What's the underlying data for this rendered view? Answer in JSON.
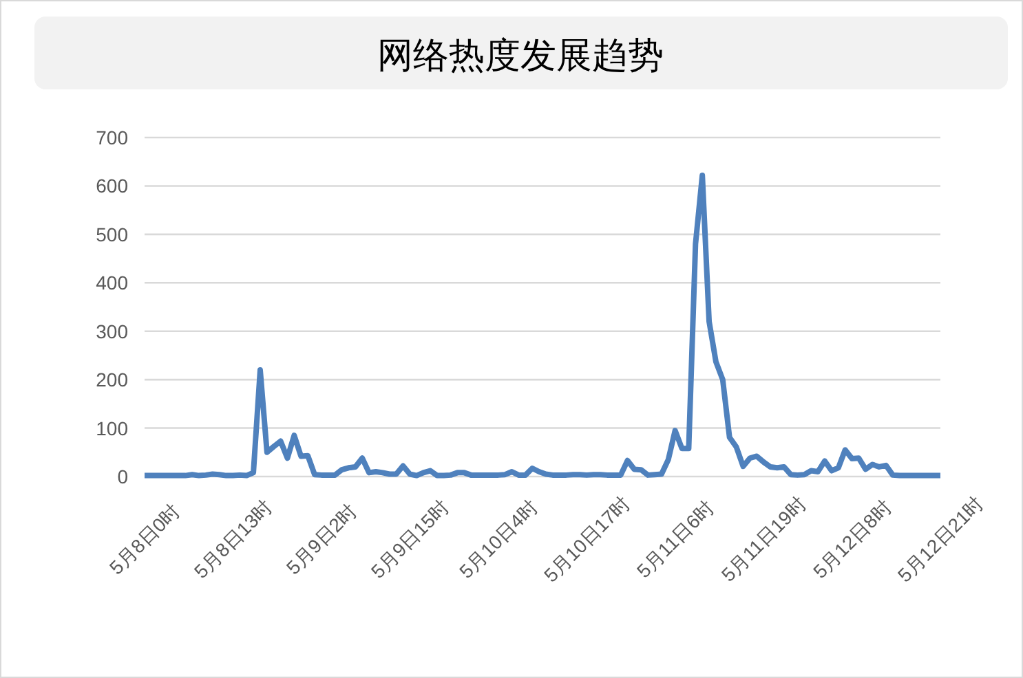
{
  "chart_data": {
    "type": "line",
    "title": "网络热度发展趋势",
    "categories": [
      "5月8日0时",
      null,
      null,
      null,
      null,
      null,
      null,
      null,
      null,
      null,
      null,
      null,
      null,
      "5月8日13时",
      null,
      null,
      null,
      null,
      null,
      null,
      null,
      null,
      null,
      null,
      null,
      null,
      "5月9日2时",
      null,
      null,
      null,
      null,
      null,
      null,
      null,
      null,
      null,
      null,
      null,
      null,
      "5月9日15时",
      null,
      null,
      null,
      null,
      null,
      null,
      null,
      null,
      null,
      null,
      null,
      null,
      "5月10日4时",
      null,
      null,
      null,
      null,
      null,
      null,
      null,
      null,
      null,
      null,
      null,
      null,
      "5月10日17时",
      null,
      null,
      null,
      null,
      null,
      null,
      null,
      null,
      null,
      null,
      null,
      null,
      "5月11日6时",
      null,
      null,
      null,
      null,
      null,
      null,
      null,
      null,
      null,
      null,
      null,
      null,
      "5月11日19时",
      null,
      null,
      null,
      null,
      null,
      null,
      null,
      null,
      null,
      null,
      null,
      null,
      "5月12日8时",
      null,
      null,
      null,
      null,
      null,
      null,
      null,
      null,
      null,
      null,
      null,
      null,
      "5月12日21时"
    ],
    "series": [
      {
        "color": "#4f81bd",
        "values": [
          2,
          2,
          2,
          2,
          2,
          2,
          2,
          4,
          2,
          3,
          5,
          4,
          2,
          2,
          3,
          2,
          8,
          220,
          50,
          62,
          73,
          38,
          85,
          42,
          43,
          4,
          3,
          3,
          3,
          14,
          18,
          20,
          38,
          8,
          10,
          8,
          5,
          5,
          22,
          5,
          2,
          8,
          12,
          2,
          2,
          3,
          8,
          8,
          3,
          3,
          3,
          3,
          3,
          4,
          10,
          3,
          3,
          17,
          10,
          5,
          3,
          3,
          3,
          4,
          4,
          3,
          4,
          4,
          3,
          3,
          3,
          33,
          15,
          14,
          3,
          4,
          5,
          35,
          95,
          58,
          58,
          480,
          622,
          320,
          237,
          200,
          81,
          61,
          21,
          38,
          42,
          30,
          20,
          18,
          20,
          4,
          3,
          4,
          12,
          10,
          32,
          12,
          18,
          55,
          37,
          38,
          15,
          25,
          20,
          23,
          3,
          2,
          2,
          2,
          2,
          2,
          2,
          2
        ]
      }
    ],
    "ylim": [
      0,
      700
    ],
    "yticks": [
      0,
      100,
      200,
      300,
      400,
      500,
      600,
      700
    ],
    "grid": "y",
    "line_style": "solid"
  }
}
